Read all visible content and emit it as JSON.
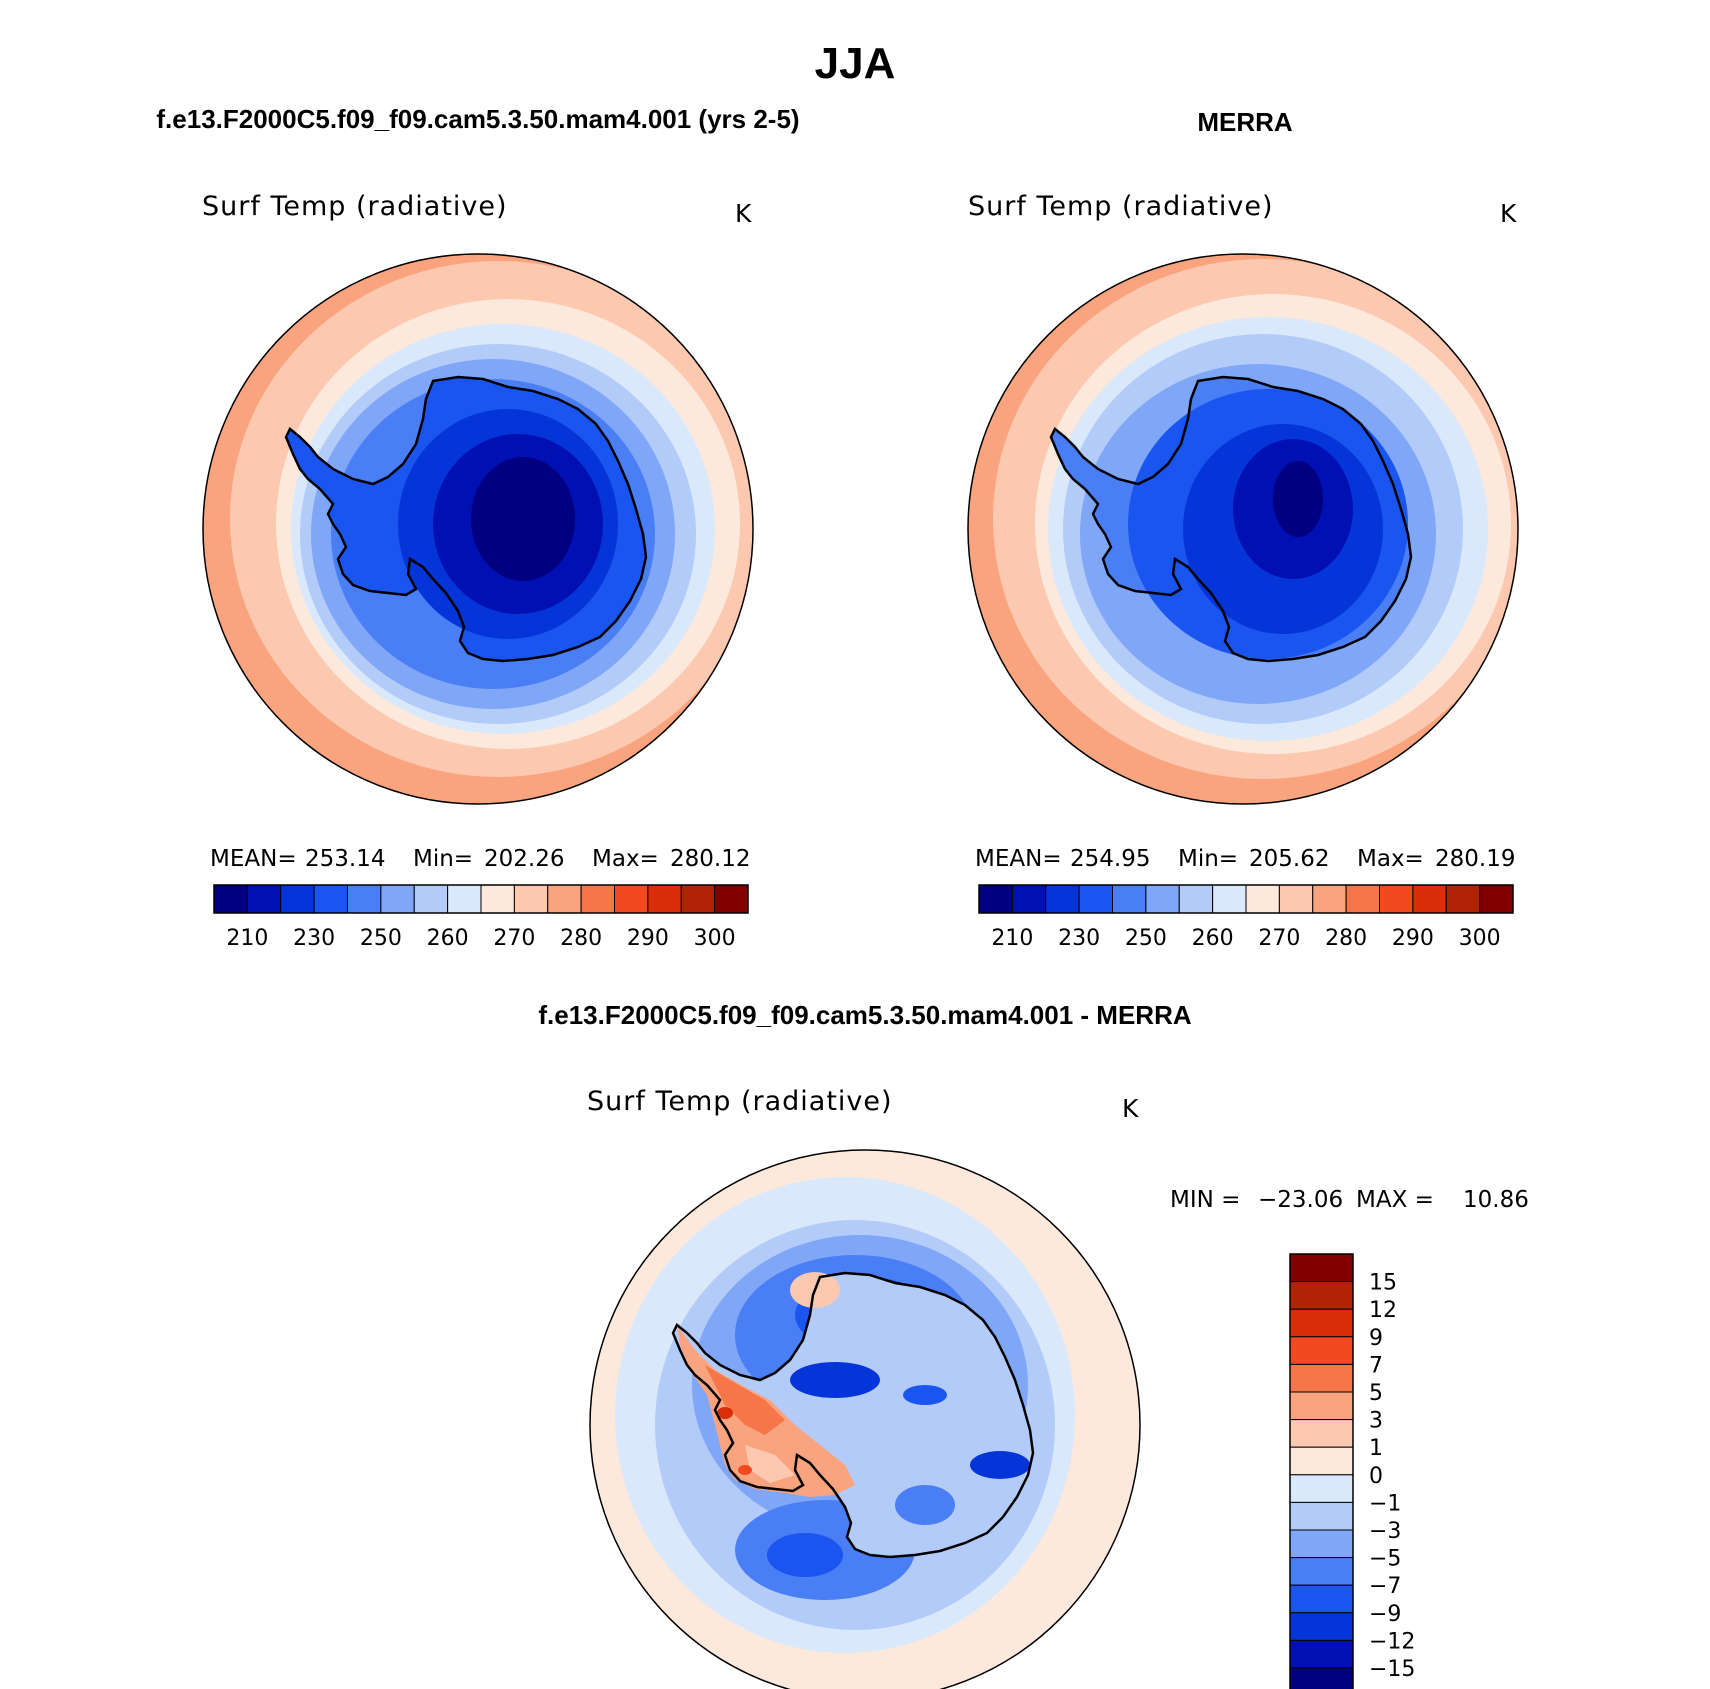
{
  "season": "JJA",
  "panels": [
    {
      "id": "model",
      "header": "f.e13.F2000C5.f09_f09.cam5.3.50.mam4.001 (yrs 2-5)",
      "variable": "Surf Temp (radiative)",
      "units": "K",
      "stats": {
        "mean_label": "MEAN=",
        "mean": "253.14",
        "min_label": "Min=",
        "min": "202.26",
        "max_label": "Max=",
        "max": "280.12"
      },
      "colorbar": {
        "colors": [
          "#000080",
          "#0010b3",
          "#0535d8",
          "#1a55f0",
          "#4a7ef5",
          "#7fa6f7",
          "#b3cbf8",
          "#dae8fb",
          "#fde9dc",
          "#fcc8af",
          "#f9a47e",
          "#f6764a",
          "#f24a20",
          "#d92e08",
          "#b22205",
          "#800000"
        ],
        "tick_labels": [
          "210",
          "230",
          "250",
          "260",
          "270",
          "280",
          "290",
          "300"
        ]
      }
    },
    {
      "id": "obs",
      "header": "MERRA",
      "variable": "Surf Temp (radiative)",
      "units": "K",
      "stats": {
        "mean_label": "MEAN=",
        "mean": "254.95",
        "min_label": "Min=",
        "min": "205.62",
        "max_label": "Max=",
        "max": "280.19"
      },
      "colorbar": {
        "colors": [
          "#000080",
          "#0010b3",
          "#0535d8",
          "#1a55f0",
          "#4a7ef5",
          "#7fa6f7",
          "#b3cbf8",
          "#dae8fb",
          "#fde9dc",
          "#fcc8af",
          "#f9a47e",
          "#f6764a",
          "#f24a20",
          "#d92e08",
          "#b22205",
          "#800000"
        ],
        "tick_labels": [
          "210",
          "230",
          "250",
          "260",
          "270",
          "280",
          "290",
          "300"
        ]
      }
    },
    {
      "id": "diff",
      "header": "f.e13.F2000C5.f09_f09.cam5.3.50.mam4.001 - MERRA",
      "variable": "Surf Temp (radiative)",
      "units": "K",
      "stats": {
        "min_label": "MIN =",
        "min": "−23.06",
        "max_label": "MAX =",
        "max": "10.86"
      },
      "colorbar": {
        "colors_top_to_bottom": [
          "#800000",
          "#b22205",
          "#d92e08",
          "#f24a20",
          "#f6764a",
          "#f9a47e",
          "#fcc8af",
          "#fde9dc",
          "#dae8fb",
          "#b3cbf8",
          "#7fa6f7",
          "#4a7ef5",
          "#1a55f0",
          "#0535d8",
          "#0010b3",
          "#000080"
        ],
        "tick_labels": [
          "15",
          "12",
          "9",
          "7",
          "5",
          "3",
          "1",
          "0",
          "−1",
          "−3",
          "−5",
          "−7",
          "−9",
          "−12",
          "−15"
        ]
      }
    }
  ],
  "palette": {
    "ocean_warm": "#f9a47e",
    "ocean_mild": "#fcc8af",
    "ocean_cool": "#fde9dc",
    "ice_edge": "#dae8fb",
    "coastline": "#000000"
  }
}
